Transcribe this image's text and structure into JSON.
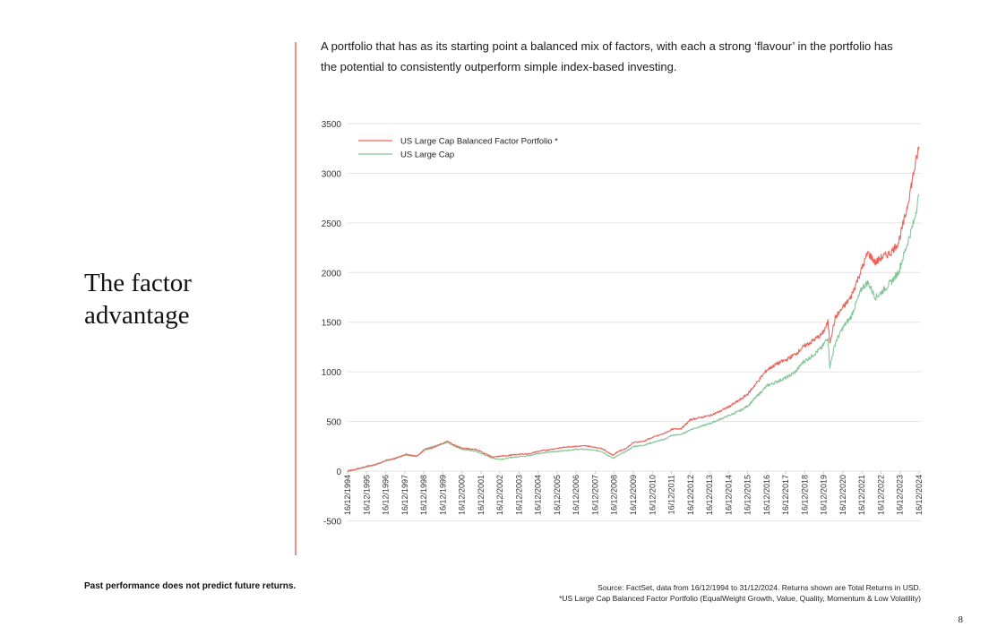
{
  "page": {
    "title": "The factor advantage",
    "intro": "A portfolio that has as its starting point a balanced mix of factors, with each a strong ‘flavour’ in the portfolio has the potential to consistently outperform simple index-based investing.",
    "disclaimer": "Past performance does not predict future returns.",
    "source_line1": "Source: FactSet, data from 16/12/1994 to 31/12/2024. Returns shown are Total Returns in USD.",
    "source_line2": "*US Large Cap Balanced Factor Portfolio (EqualWeight Growth, Value, Quality, Momentum & Low Volatility)",
    "page_number": "8",
    "accent_color": "#ef8f86"
  },
  "chart_data": {
    "type": "line",
    "title": "",
    "xlabel": "",
    "ylabel": "",
    "ylim": [
      -500,
      3500
    ],
    "yticks": [
      -500,
      0,
      500,
      1000,
      1500,
      2000,
      2500,
      3000,
      3500
    ],
    "xlim": [
      1994.96,
      2024.99
    ],
    "grid": true,
    "legend_position": "top-left",
    "x_tick_labels": [
      "16/12/1994",
      "16/12/1995",
      "16/12/1996",
      "16/12/1997",
      "16/12/1998",
      "16/12/1999",
      "16/12/2000",
      "16/12/2001",
      "16/12/2002",
      "16/12/2003",
      "16/12/2004",
      "16/12/2005",
      "16/12/2006",
      "16/12/2007",
      "16/12/2008",
      "16/12/2009",
      "16/12/2010",
      "16/12/2011",
      "16/12/2012",
      "16/12/2013",
      "16/12/2014",
      "16/12/2015",
      "16/12/2016",
      "16/12/2017",
      "16/12/2018",
      "16/12/2019",
      "16/12/2020",
      "16/12/2021",
      "16/12/2022",
      "16/12/2023",
      "16/12/2024"
    ],
    "x": [
      1994.96,
      1995.5,
      1996,
      1996.5,
      1997,
      1997.5,
      1998,
      1998.6,
      1999,
      1999.5,
      2000.2,
      2000.6,
      2001,
      2001.7,
      2002.6,
      2003,
      2003.5,
      2004,
      2004.5,
      2005,
      2005.5,
      2006,
      2006.5,
      2007,
      2007.5,
      2008.3,
      2008.9,
      2009.2,
      2009.6,
      2010,
      2010.5,
      2011,
      2011.6,
      2012,
      2012.5,
      2013,
      2013.5,
      2014,
      2014.5,
      2015,
      2015.6,
      2016,
      2016.5,
      2017,
      2017.5,
      2018,
      2018.5,
      2018.9,
      2019.3,
      2019.9,
      2020.2,
      2020.3,
      2020.6,
      2021,
      2021.4,
      2021.7,
      2022,
      2022.3,
      2022.7,
      2023,
      2023.5,
      2023.9,
      2024.3,
      2024.7,
      2024.99
    ],
    "series": [
      {
        "name": "US Large Cap Balanced Factor Portfolio *",
        "color": "#e8665c",
        "values": [
          0,
          25,
          50,
          70,
          110,
          130,
          170,
          150,
          215,
          240,
          300,
          260,
          230,
          220,
          140,
          150,
          160,
          170,
          175,
          200,
          215,
          230,
          245,
          250,
          255,
          230,
          160,
          200,
          230,
          290,
          300,
          340,
          380,
          420,
          430,
          520,
          540,
          560,
          600,
          650,
          720,
          780,
          900,
          1020,
          1080,
          1120,
          1180,
          1250,
          1300,
          1380,
          1500,
          1300,
          1550,
          1650,
          1750,
          1900,
          2050,
          2200,
          2100,
          2150,
          2200,
          2300,
          2600,
          3000,
          3270
        ]
      },
      {
        "name": "US Large Cap",
        "color": "#86c59a",
        "values": [
          0,
          22,
          45,
          68,
          105,
          130,
          165,
          150,
          220,
          250,
          290,
          250,
          220,
          200,
          130,
          120,
          135,
          150,
          155,
          180,
          190,
          200,
          210,
          220,
          220,
          200,
          130,
          160,
          200,
          250,
          260,
          290,
          320,
          360,
          370,
          420,
          450,
          480,
          520,
          560,
          610,
          660,
          760,
          860,
          900,
          940,
          1000,
          1100,
          1150,
          1250,
          1350,
          1050,
          1300,
          1450,
          1550,
          1700,
          1850,
          1900,
          1750,
          1800,
          1900,
          2000,
          2250,
          2500,
          2780
        ]
      }
    ]
  }
}
